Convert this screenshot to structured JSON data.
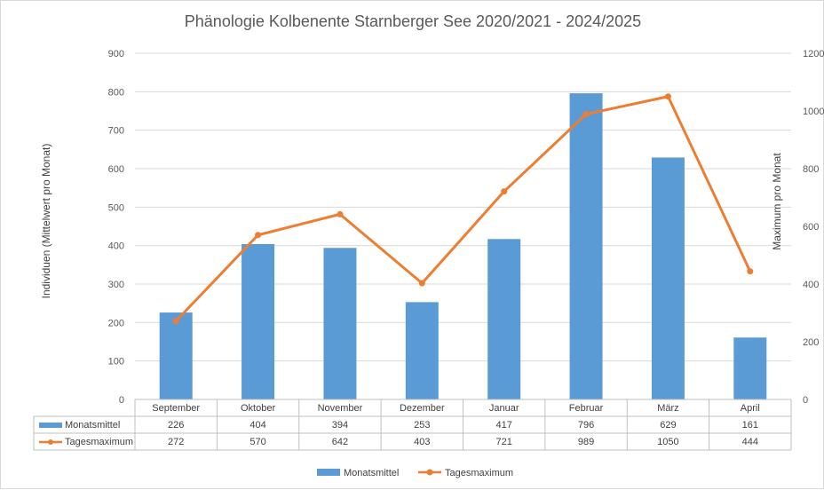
{
  "chart_data": {
    "type": "bar",
    "title": "Phänologie Kolbenente Starnberger See 2020/2021 - 2024/2025",
    "categories": [
      "September",
      "Oktober",
      "November",
      "Dezember",
      "Januar",
      "Februar",
      "März",
      "April"
    ],
    "series": [
      {
        "name": "Monatsmittel",
        "type": "bar",
        "axis": "left",
        "color": "#5b9bd5",
        "values": [
          226,
          404,
          394,
          253,
          417,
          796,
          629,
          161
        ]
      },
      {
        "name": "Tagesmaximum",
        "type": "line",
        "axis": "right",
        "color": "#ed7d31",
        "values": [
          272,
          570,
          642,
          403,
          721,
          989,
          1050,
          444
        ]
      }
    ],
    "ylabel": "Individuen (Mittelwert pro Monat)",
    "y2label": "Maximum pro Monat",
    "ylim": [
      0,
      900
    ],
    "y2lim": [
      0,
      1200
    ],
    "yticks": [
      0,
      100,
      200,
      300,
      400,
      500,
      600,
      700,
      800,
      900
    ],
    "y2ticks": [
      0,
      200,
      400,
      600,
      800,
      1000,
      1200
    ],
    "grid": true,
    "legend_position": "bottom",
    "data_table": true
  }
}
